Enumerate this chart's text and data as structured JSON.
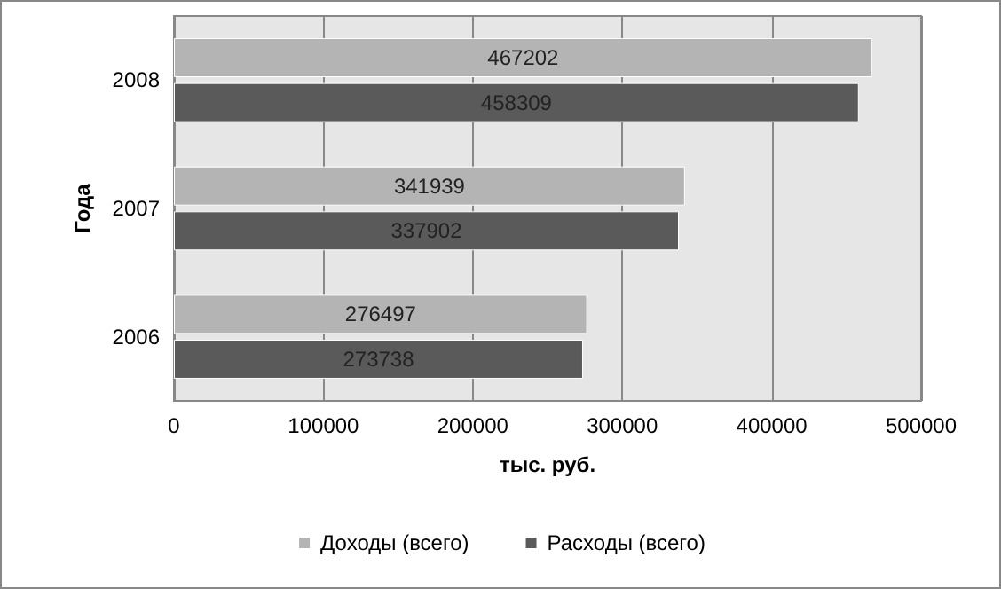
{
  "chart_data": {
    "type": "bar",
    "orientation": "horizontal",
    "ylabel": "Года",
    "xlabel": "тыс. руб.",
    "categories": [
      "2008",
      "2007",
      "2006"
    ],
    "series": [
      {
        "name": "Доходы (всего)",
        "color": "#b4b4b4",
        "values": [
          467202,
          341939,
          276497
        ]
      },
      {
        "name": "Расходы (всего)",
        "color": "#5a5a5a",
        "values": [
          458309,
          337902,
          273738
        ]
      }
    ],
    "xlim": [
      0,
      500000
    ],
    "xticks": [
      0,
      100000,
      200000,
      300000,
      400000,
      500000
    ],
    "grid": "x",
    "legend": "bottom",
    "data_labels": true
  }
}
